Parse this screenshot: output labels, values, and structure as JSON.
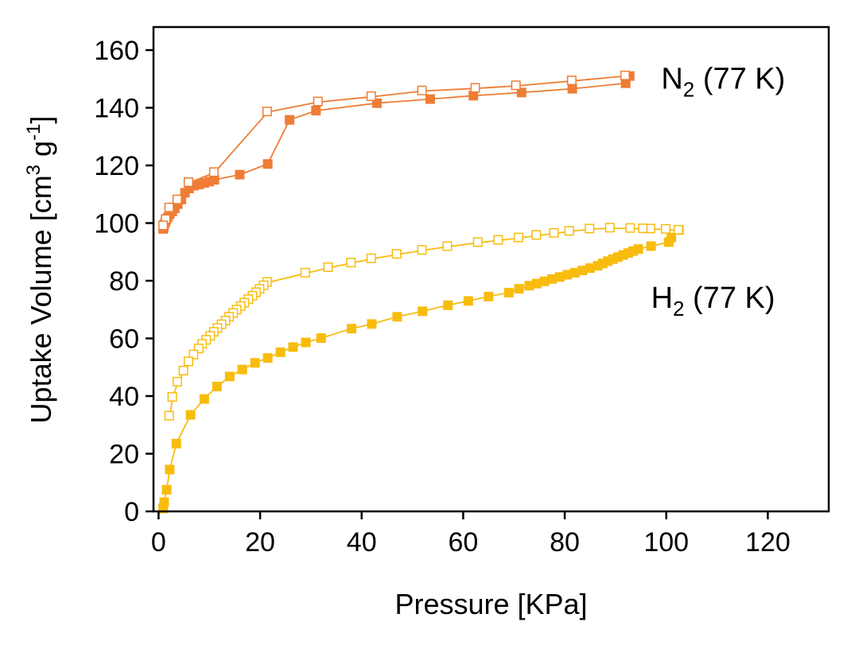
{
  "chart_data": {
    "type": "scatter",
    "xlabel": "Pressure [KPa]",
    "ylabel": {
      "prefix": "Uptake Volume [cm",
      "sup1": "3",
      "mid": " g",
      "sup2": "-1",
      "suffix": "]"
    },
    "xlim": [
      -1,
      132
    ],
    "ylim": [
      0,
      168
    ],
    "xticks": [
      0,
      20,
      40,
      60,
      80,
      100,
      120
    ],
    "yticks": [
      0,
      20,
      40,
      60,
      80,
      100,
      120,
      140,
      160
    ],
    "grid": false,
    "legend": "none",
    "annotations": [
      {
        "id": "n2",
        "base": "N",
        "sub": "2",
        "rest": " (77 K)",
        "x": 99,
        "y": 150
      },
      {
        "id": "h2",
        "base": "H",
        "sub": "2",
        "rest": " (77 K)",
        "x": 97,
        "y": 74
      }
    ],
    "series": [
      {
        "id": "n2-adsorption",
        "color": "#ee7d35",
        "marker": "filled",
        "x": [
          0.9,
          1.0,
          1.1,
          1.3,
          1.5,
          1.8,
          2.2,
          2.7,
          3.2,
          3.8,
          4.5,
          5.2,
          6.0,
          7.0,
          8.0,
          9.0,
          10.0,
          11.0,
          16.0,
          21.5,
          25.8,
          31.0,
          43.0,
          53.5,
          62.0,
          71.5,
          81.5,
          92.0,
          92.8
        ],
        "y": [
          98.0,
          98.6,
          99.3,
          100.2,
          101.1,
          102.0,
          103.0,
          104.0,
          105.1,
          106.6,
          108.2,
          110.5,
          112.0,
          113.0,
          113.4,
          113.9,
          114.4,
          115.0,
          116.8,
          120.5,
          135.8,
          139.0,
          141.6,
          143.0,
          144.2,
          145.3,
          146.6,
          148.5,
          151.0
        ]
      },
      {
        "id": "n2-desorption",
        "color": "#ee7d35",
        "marker": "open",
        "x": [
          92.0,
          81.5,
          70.5,
          62.5,
          52.0,
          42.0,
          31.5,
          21.5,
          11.0,
          6.0,
          3.8,
          2.2,
          1.5,
          1.0
        ],
        "y": [
          151.0,
          149.3,
          147.6,
          146.7,
          145.8,
          143.8,
          142.0,
          138.5,
          117.5,
          114.0,
          108.0,
          105.2,
          101.2,
          99.0
        ]
      },
      {
        "id": "h2-adsorption",
        "color": "#f8bc0e",
        "marker": "filled",
        "x": [
          0.9,
          1.1,
          1.6,
          2.2,
          3.5,
          6.3,
          9.0,
          11.5,
          14.0,
          16.5,
          19.0,
          21.5,
          24.0,
          26.5,
          29.0,
          32.0,
          38.0,
          42.0,
          47.0,
          52.0,
          57.0,
          61.0,
          65.0,
          69.0,
          71.0,
          73.0,
          74.5,
          76.0,
          77.5,
          79.0,
          80.5,
          82.0,
          83.5,
          85.0,
          86.5,
          87.5,
          88.5,
          89.5,
          90.5,
          91.5,
          92.5,
          93.5,
          94.5,
          97.0,
          100.5,
          101.0,
          102.5
        ],
        "y": [
          1.0,
          3.2,
          7.5,
          14.5,
          23.5,
          33.5,
          39.0,
          43.3,
          46.8,
          49.2,
          51.5,
          53.2,
          55.2,
          57.0,
          58.6,
          60.1,
          63.4,
          65.0,
          67.5,
          69.4,
          71.5,
          73.0,
          74.5,
          75.9,
          77.2,
          78.3,
          79.0,
          79.8,
          80.6,
          81.3,
          82.1,
          82.8,
          83.6,
          84.4,
          85.2,
          86.0,
          86.8,
          87.5,
          88.2,
          88.9,
          89.6,
          90.3,
          91.0,
          92.0,
          93.4,
          95.0,
          97.6
        ]
      },
      {
        "id": "h2-desorption",
        "color": "#f8bc0e",
        "marker": "open",
        "x": [
          102.5,
          100.0,
          97.0,
          95.5,
          93.0,
          89.0,
          85.0,
          81.0,
          78.0,
          74.5,
          71.0,
          67.0,
          63.0,
          57.0,
          52.0,
          47.0,
          42.0,
          38.0,
          33.5,
          29.0,
          21.5,
          20.8,
          20.0,
          19.3,
          18.6,
          17.8,
          17.0,
          16.3,
          15.5,
          14.8,
          14.0,
          13.3,
          12.5,
          11.7,
          11.0,
          10.3,
          9.5,
          8.7,
          8.0,
          7.0,
          6.0,
          5.0,
          3.8,
          2.8,
          2.2
        ],
        "y": [
          97.5,
          97.8,
          97.9,
          98.0,
          98.1,
          98.2,
          97.9,
          97.1,
          96.4,
          95.7,
          94.8,
          94.0,
          93.2,
          91.8,
          90.5,
          89.1,
          87.6,
          86.1,
          84.5,
          82.6,
          79.4,
          78.2,
          77.0,
          75.8,
          74.6,
          73.4,
          72.2,
          71.0,
          69.8,
          68.6,
          67.3,
          66.0,
          64.7,
          63.4,
          62.1,
          60.7,
          59.3,
          57.9,
          56.3,
          54.2,
          51.8,
          48.6,
          44.8,
          39.5,
          33.0
        ]
      }
    ]
  }
}
